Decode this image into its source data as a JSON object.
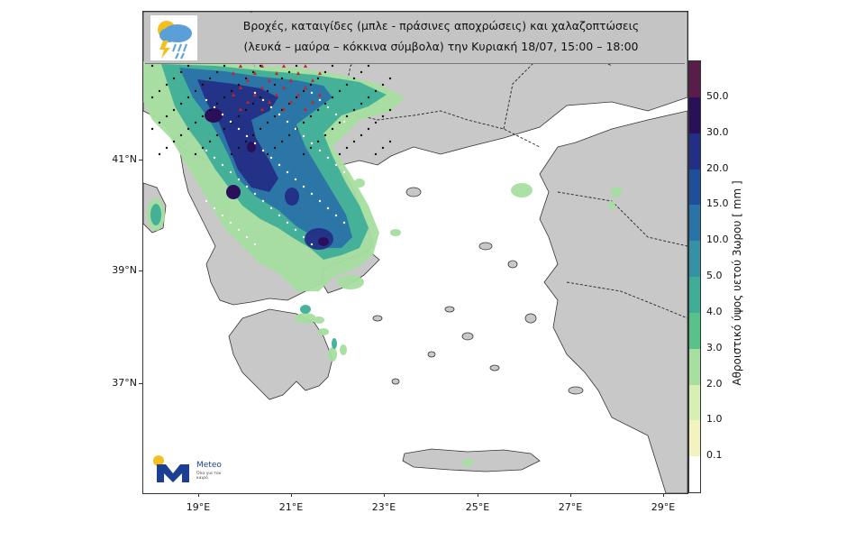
{
  "title": {
    "line1": "Βροχές, καταιγίδες (μπλε - πράσινες αποχρώσεις) και χαλαζοπτώσεις",
    "line2": "(λευκά – μαύρα – κόκκινα σύμβολα) την Κυριακή 18/07, 15:00 – 18:00",
    "icon": "rain-thunder-cloud-icon"
  },
  "latitude_labels": [
    "41°N",
    "39°N",
    "37°N"
  ],
  "longitude_labels": [
    "19°E",
    "21°E",
    "23°E",
    "25°E",
    "27°E",
    "29°E"
  ],
  "colorbar": {
    "title": "Αθροιστικό ύψος υετού 3ωρου [ mm ]",
    "labels": [
      "50.0",
      "30.0",
      "20.0",
      "15.0",
      "10.0",
      "5.0",
      "4.0",
      "3.0",
      "2.0",
      "1.0",
      "0.1"
    ],
    "colors": [
      "#5a1d4a",
      "#2a0f5a",
      "#232f86",
      "#1f4f9a",
      "#2a73a8",
      "#3592a6",
      "#3fae98",
      "#57c28a",
      "#a6dfa0",
      "#d8efb4",
      "#f2f3c0",
      "#ffffff"
    ]
  },
  "logo": {
    "name": "Meteo",
    "tagline": "Όλα για τον καιρό"
  },
  "colors": {
    "land": "#c8c8c8",
    "sea": "#ffffff",
    "border": "#222222",
    "title_bg": "#c4c4c4",
    "hail_white": "#ffffff",
    "hail_red": "#cc2222"
  }
}
